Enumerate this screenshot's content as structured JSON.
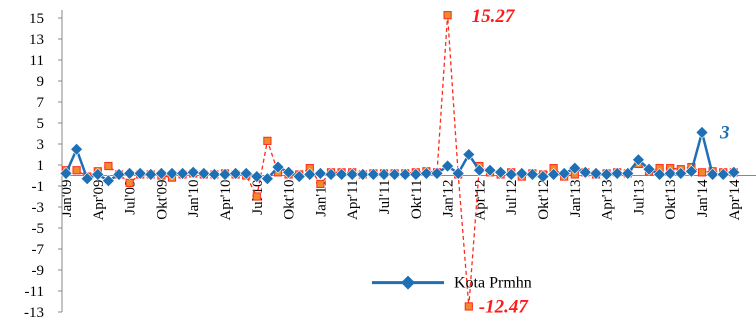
{
  "chart_data": {
    "type": "line",
    "title": "",
    "xlabel": "",
    "ylabel": "",
    "ylim": [
      -13,
      15
    ],
    "y_ticks": [
      15,
      13,
      11,
      9,
      7,
      5,
      3,
      1,
      -1,
      -3,
      -5,
      -7,
      -9,
      -11,
      -13
    ],
    "x_tick_labels": [
      "Jan'09",
      "Apr'09",
      "Jul'09",
      "Okt'09",
      "Jan'10",
      "Apr'10",
      "Jul'10",
      "Okt'10",
      "Jan'11",
      "Apr'11",
      "Jul'11",
      "Okt'11",
      "Jan'12",
      "Apr'12",
      "Jul'12",
      "Okt'12",
      "Jan'13",
      "Apr'13",
      "Jul'13",
      "Okt'13",
      "Jan'14",
      "Apr'14"
    ],
    "x_tick_step_months": 3,
    "grid": false,
    "legend_position": "bottom-center",
    "series": [
      {
        "name": "Kota Prmhn",
        "color": "#1f6fb4",
        "style": "solid",
        "marker": "diamond",
        "values": [
          0.2,
          2.5,
          -0.3,
          0.1,
          -0.5,
          0.1,
          0.2,
          0.2,
          0.1,
          0.2,
          0.2,
          0.2,
          0.3,
          0.2,
          0.1,
          0.1,
          0.2,
          0.2,
          -0.1,
          -0.3,
          0.8,
          0.3,
          -0.1,
          0.1,
          0.2,
          0.1,
          0.1,
          0.1,
          0.1,
          0.1,
          0.1,
          0.1,
          0.1,
          0.1,
          0.2,
          0.2,
          0.9,
          0.2,
          2.0,
          0.5,
          0.5,
          0.3,
          0.1,
          0.2,
          0.1,
          -0.1,
          0.1,
          0.2,
          0.7,
          0.3,
          0.2,
          0.1,
          0.2,
          0.2,
          1.5,
          0.6,
          0.1,
          0.2,
          0.2,
          0.4,
          4.1,
          0.1,
          0.1,
          0.3
        ],
        "annotation": "3"
      },
      {
        "name": "",
        "color": "#ff2a1a",
        "marker_fill": "#f08a2a",
        "style": "dashed",
        "marker": "square",
        "values": [
          0.5,
          0.5,
          -0.1,
          0.4,
          0.9,
          0.1,
          -0.7,
          0.1,
          0.1,
          0.0,
          -0.2,
          0.1,
          0.2,
          0.1,
          0.1,
          0.2,
          0.1,
          0.0,
          -2.0,
          3.3,
          0.3,
          0.1,
          0.1,
          0.7,
          -0.8,
          0.3,
          0.3,
          0.3,
          0.1,
          0.2,
          0.2,
          0.2,
          0.2,
          0.3,
          0.4,
          0.3,
          15.27,
          0.1,
          -12.47,
          0.9,
          0.3,
          0.1,
          0.3,
          -0.1,
          0.2,
          0.1,
          0.7,
          -0.1,
          0.1,
          0.3,
          0.1,
          0.2,
          0.3,
          0.2,
          1.1,
          0.4,
          0.7,
          0.7,
          0.6,
          0.8,
          0.3,
          0.4,
          0.3,
          0.3
        ],
        "max_label": "15.27",
        "min_label": "-12.47"
      }
    ]
  }
}
